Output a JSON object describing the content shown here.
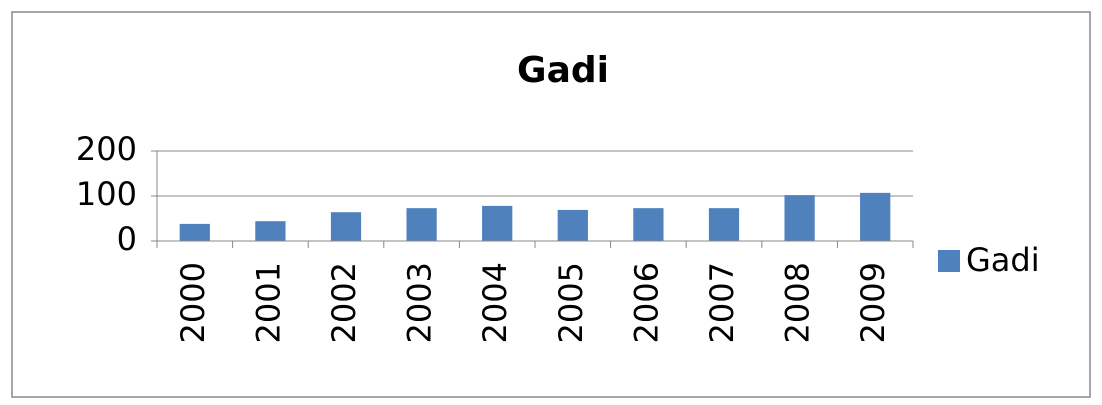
{
  "chart_data": {
    "type": "bar",
    "title": "Gadi",
    "categories": [
      "2000",
      "2001",
      "2002",
      "2003",
      "2004",
      "2005",
      "2006",
      "2007",
      "2008",
      "2009"
    ],
    "series": [
      {
        "name": "Gadi",
        "color": "#4f81bd",
        "values": [
          38,
          44,
          64,
          73,
          78,
          69,
          73,
          73,
          102,
          107
        ]
      }
    ],
    "ylim": [
      0,
      200
    ],
    "yticks": [
      0,
      100,
      200
    ],
    "grid": true,
    "legend": "right"
  }
}
